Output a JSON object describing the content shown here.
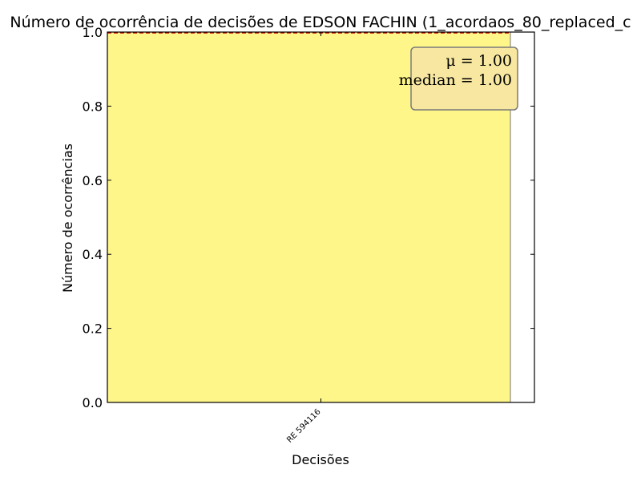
{
  "chart_data": {
    "type": "bar",
    "title": "Número de ocorrência de decisões de EDSON FACHIN (1_acordaos_80_replaced_c",
    "xlabel": "Decisões",
    "ylabel": "Número de ocorrências",
    "categories": [
      "RE 594116"
    ],
    "values": [
      1
    ],
    "ylim": [
      0,
      1
    ],
    "yticks": [
      0.0,
      0.2,
      0.4,
      0.6,
      0.8,
      1.0
    ],
    "ytick_labels": [
      "0.0",
      "0.2",
      "0.4",
      "0.6",
      "0.8",
      "1.0"
    ],
    "bar_color": "#fff68a",
    "mean_line_color": "#cc0000",
    "grid": false,
    "legend": "none",
    "stats_box": {
      "mean_label": "μ = 1.00",
      "median_label": "median = 1.00",
      "placement": "top-right",
      "box_color": "#f7e7a0"
    }
  }
}
